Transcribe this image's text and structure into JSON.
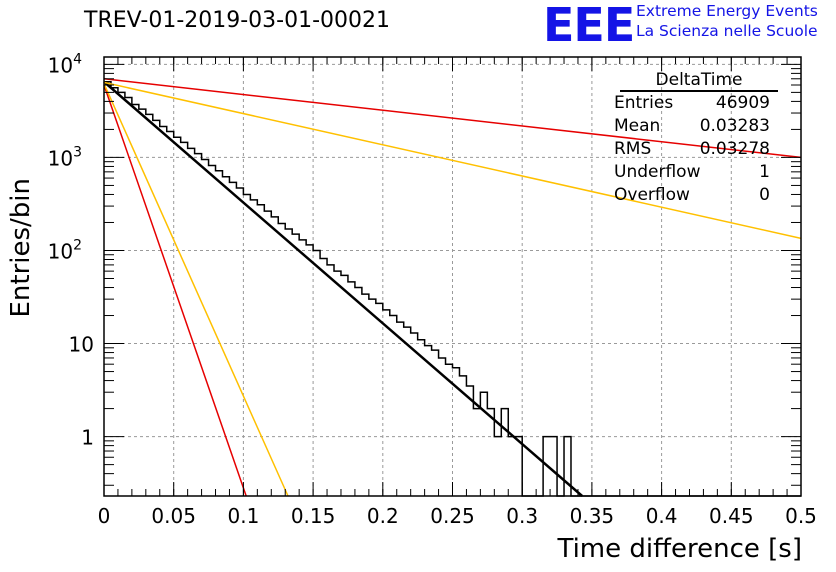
{
  "title": "TREV-01-2019-03-01-00021",
  "logo": {
    "text": "EEE",
    "line1": "Extreme Energy Events",
    "line2": "La Scienza nelle Scuole",
    "color": "#1414e6"
  },
  "stats": {
    "name": "DeltaTime",
    "rows": [
      {
        "label": "Entries",
        "value": "46909"
      },
      {
        "label": "Mean",
        "value": "0.03283"
      },
      {
        "label": "RMS",
        "value": "0.03278"
      },
      {
        "label": "Underflow",
        "value": "1"
      },
      {
        "label": "Overflow",
        "value": "0"
      }
    ]
  },
  "chart_data": {
    "type": "line",
    "xlabel": "Time difference [s]",
    "ylabel": "Entries/bin",
    "xlim": [
      0,
      0.5
    ],
    "ylim": [
      0.23,
      12000
    ],
    "yscale": "log",
    "grid": true,
    "xticks": [
      "0",
      "0.05",
      "0.1",
      "0.15",
      "0.2",
      "0.25",
      "0.3",
      "0.35",
      "0.4",
      "0.45",
      "0.5"
    ],
    "yticks": [
      {
        "value": 10000,
        "base": "10",
        "exp": "4"
      },
      {
        "value": 1000,
        "base": "10",
        "exp": "3"
      },
      {
        "value": 100,
        "base": "10",
        "exp": "2"
      },
      {
        "value": 10,
        "base": "10",
        "exp": ""
      },
      {
        "value": 1,
        "base": "1",
        "exp": ""
      }
    ],
    "histogram": {
      "bin_width": 0.005,
      "x_start": 0,
      "counts": [
        6500,
        5600,
        5000,
        4400,
        3700,
        3300,
        2900,
        2500,
        2150,
        1900,
        1650,
        1450,
        1250,
        1100,
        950,
        820,
        720,
        620,
        540,
        470,
        400,
        350,
        310,
        265,
        230,
        195,
        170,
        150,
        130,
        115,
        100,
        82,
        70,
        60,
        54,
        46,
        40,
        34,
        30,
        27,
        23,
        20,
        17,
        15,
        13,
        11,
        9.5,
        8.5,
        7,
        6,
        5.5,
        4.5,
        3.5,
        2,
        3,
        2,
        1,
        2,
        1,
        1,
        0,
        0,
        0,
        1,
        1,
        0,
        1,
        0,
        0,
        0,
        0,
        0,
        0,
        0,
        0,
        0,
        0,
        0,
        0,
        0,
        0,
        0,
        0,
        0,
        0,
        0,
        0,
        0,
        0,
        0,
        0,
        0,
        0,
        0,
        0,
        0,
        0,
        0,
        0,
        0
      ],
      "color": "#000000"
    },
    "series": [
      {
        "points": [
          [
            0,
            6500
          ],
          [
            0.343,
            0.23
          ]
        ],
        "color": "#000000",
        "width": 2.5
      },
      {
        "points": [
          [
            0,
            7000
          ],
          [
            0.5,
            1000
          ]
        ],
        "color": "#e60000",
        "width": 1.5
      },
      {
        "points": [
          [
            0,
            6400
          ],
          [
            0.5,
            135
          ]
        ],
        "color": "#ffc000",
        "width": 1.5
      },
      {
        "points": [
          [
            0,
            6000
          ],
          [
            0.102,
            0.23
          ]
        ],
        "color": "#e60000",
        "width": 1.5
      },
      {
        "points": [
          [
            0,
            6200
          ],
          [
            0.132,
            0.23
          ]
        ],
        "color": "#ffc000",
        "width": 1.5
      }
    ]
  }
}
